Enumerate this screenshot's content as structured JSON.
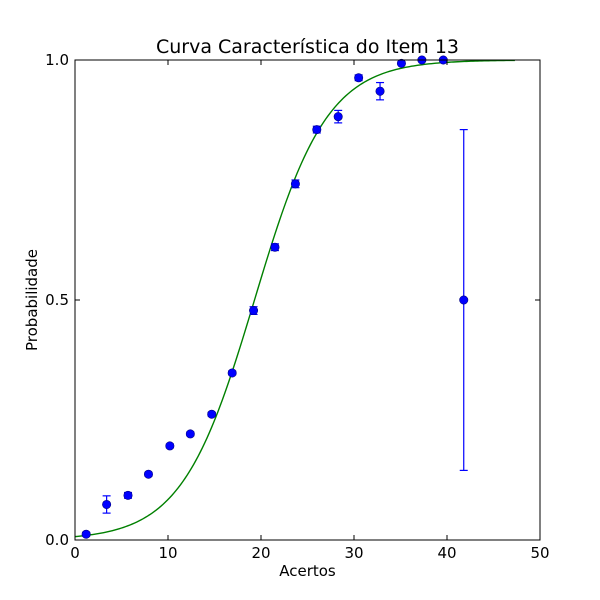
{
  "chart_data": {
    "type": "scatter",
    "title": "Curva Característica do Item 13",
    "xlabel": "Acertos",
    "ylabel": "Probabilidade",
    "xlim": [
      0,
      50
    ],
    "ylim": [
      0.0,
      1.0
    ],
    "xticks": [
      0,
      10,
      20,
      30,
      40,
      50
    ],
    "xtick_labels": [
      "0",
      "10",
      "20",
      "30",
      "40",
      "50"
    ],
    "yticks": [
      0.0,
      0.5,
      1.0
    ],
    "ytick_labels": [
      "0.0",
      "0.5",
      "1.0"
    ],
    "grid": false,
    "points": [
      {
        "x": 1.2,
        "y": 0.012,
        "err": 0.004
      },
      {
        "x": 3.4,
        "y": 0.074,
        "err": 0.018
      },
      {
        "x": 5.7,
        "y": 0.093,
        "err": 0.006
      },
      {
        "x": 7.9,
        "y": 0.137,
        "err": 0.004
      },
      {
        "x": 10.2,
        "y": 0.196,
        "err": 0.004
      },
      {
        "x": 12.4,
        "y": 0.221,
        "err": 0.004
      },
      {
        "x": 14.7,
        "y": 0.262,
        "err": 0.004
      },
      {
        "x": 16.9,
        "y": 0.348,
        "err": 0.004
      },
      {
        "x": 19.2,
        "y": 0.478,
        "err": 0.008
      },
      {
        "x": 21.5,
        "y": 0.61,
        "err": 0.007
      },
      {
        "x": 23.7,
        "y": 0.742,
        "err": 0.008
      },
      {
        "x": 26.0,
        "y": 0.855,
        "err": 0.007
      },
      {
        "x": 28.3,
        "y": 0.882,
        "err": 0.013
      },
      {
        "x": 30.5,
        "y": 0.963,
        "err": 0.006
      },
      {
        "x": 32.8,
        "y": 0.935,
        "err": 0.018
      },
      {
        "x": 35.1,
        "y": 0.993,
        "err": 0.003
      },
      {
        "x": 37.3,
        "y": 1.0,
        "err": 0.002
      },
      {
        "x": 39.6,
        "y": 1.0,
        "err": 0.002
      },
      {
        "x": 41.8,
        "y": 0.5,
        "err": 0.355
      }
    ],
    "curve": {
      "type": "logistic",
      "midpoint": 19.3,
      "scale": 3.9,
      "x_range": [
        0,
        47.3
      ]
    },
    "colors": {
      "points": "#0000ff",
      "error_bars": "#0000ff",
      "curve": "#008000",
      "axes": "#000000"
    }
  }
}
